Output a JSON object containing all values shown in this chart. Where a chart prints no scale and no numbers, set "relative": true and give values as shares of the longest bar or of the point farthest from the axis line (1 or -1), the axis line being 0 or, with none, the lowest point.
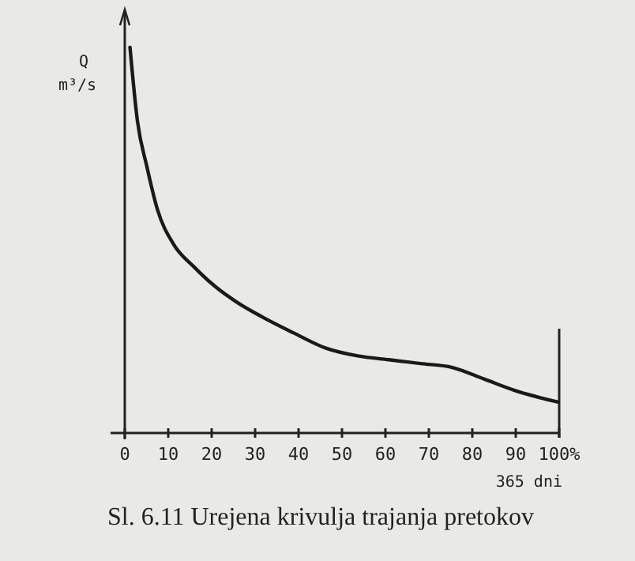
{
  "chart_data": {
    "type": "line",
    "title": "Sl. 6.11 Urejena krivulja trajanja pretokov",
    "xlabel": "365 dni",
    "ylabel": "Q m³/s",
    "relative": true,
    "x": [
      1.2,
      2.9,
      5.1,
      7.5,
      11.2,
      16,
      20.8,
      25.7,
      31.8,
      38.8,
      46.3,
      53.6,
      60.8,
      68.1,
      75.4,
      82.7,
      89.9,
      99.8
    ],
    "series": [
      {
        "color": "#1a1a1a",
        "values": [
          1.0,
          0.81,
          0.69,
          0.58,
          0.49,
          0.43,
          0.38,
          0.34,
          0.3,
          0.26,
          0.22,
          0.2,
          0.19,
          0.18,
          0.17,
          0.14,
          0.11,
          0.08
        ]
      }
    ],
    "xlim": [
      0,
      100
    ],
    "xticks": [
      0,
      10,
      20,
      30,
      40,
      50,
      60,
      70,
      80,
      90,
      {
        "value": 100,
        "label": "100%"
      }
    ],
    "ref_lines": [
      {
        "axis": "x",
        "value": 100,
        "label": null
      }
    ],
    "grid": false,
    "marker": "none",
    "line_style": "solid"
  }
}
